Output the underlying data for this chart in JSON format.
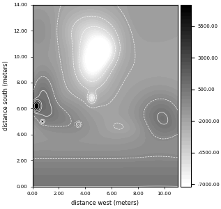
{
  "xlabel": "distance west (meters)",
  "ylabel": "distance south (meters)",
  "xlim": [
    0.0,
    11.0
  ],
  "ylim": [
    0.0,
    14.0
  ],
  "xticks": [
    0.0,
    2.0,
    4.0,
    6.0,
    8.0,
    10.0
  ],
  "yticks": [
    0.0,
    2.0,
    4.0,
    6.0,
    8.0,
    10.0,
    12.0,
    14.0
  ],
  "xtick_labels": [
    "0.00",
    "2.00",
    "4.00",
    "6.00",
    "8.00",
    "10.00"
  ],
  "ytick_labels": [
    "0.00",
    "2.00",
    "4.00",
    "6.00",
    "8.00",
    "10.00",
    "12.00",
    "14.00"
  ],
  "colorbar_ticks": [
    5500.0,
    3000.0,
    500.0,
    -2000.0,
    -4500.0,
    -7000.0
  ],
  "colorbar_tick_labels": [
    "5500.00",
    "3000.00",
    "500.00",
    "-2000.00",
    "-4500.00",
    "-7000.00"
  ],
  "vmin": -7000,
  "vmax": 7000,
  "contour_levels": [
    -6500,
    -5000,
    -3500,
    -2000,
    -500,
    500,
    1500,
    3000,
    5500
  ],
  "figsize": [
    3.17,
    3.01
  ],
  "dpi": 100,
  "label_fontsize": 6,
  "tick_fontsize": 5,
  "cbar_tick_fontsize": 5
}
